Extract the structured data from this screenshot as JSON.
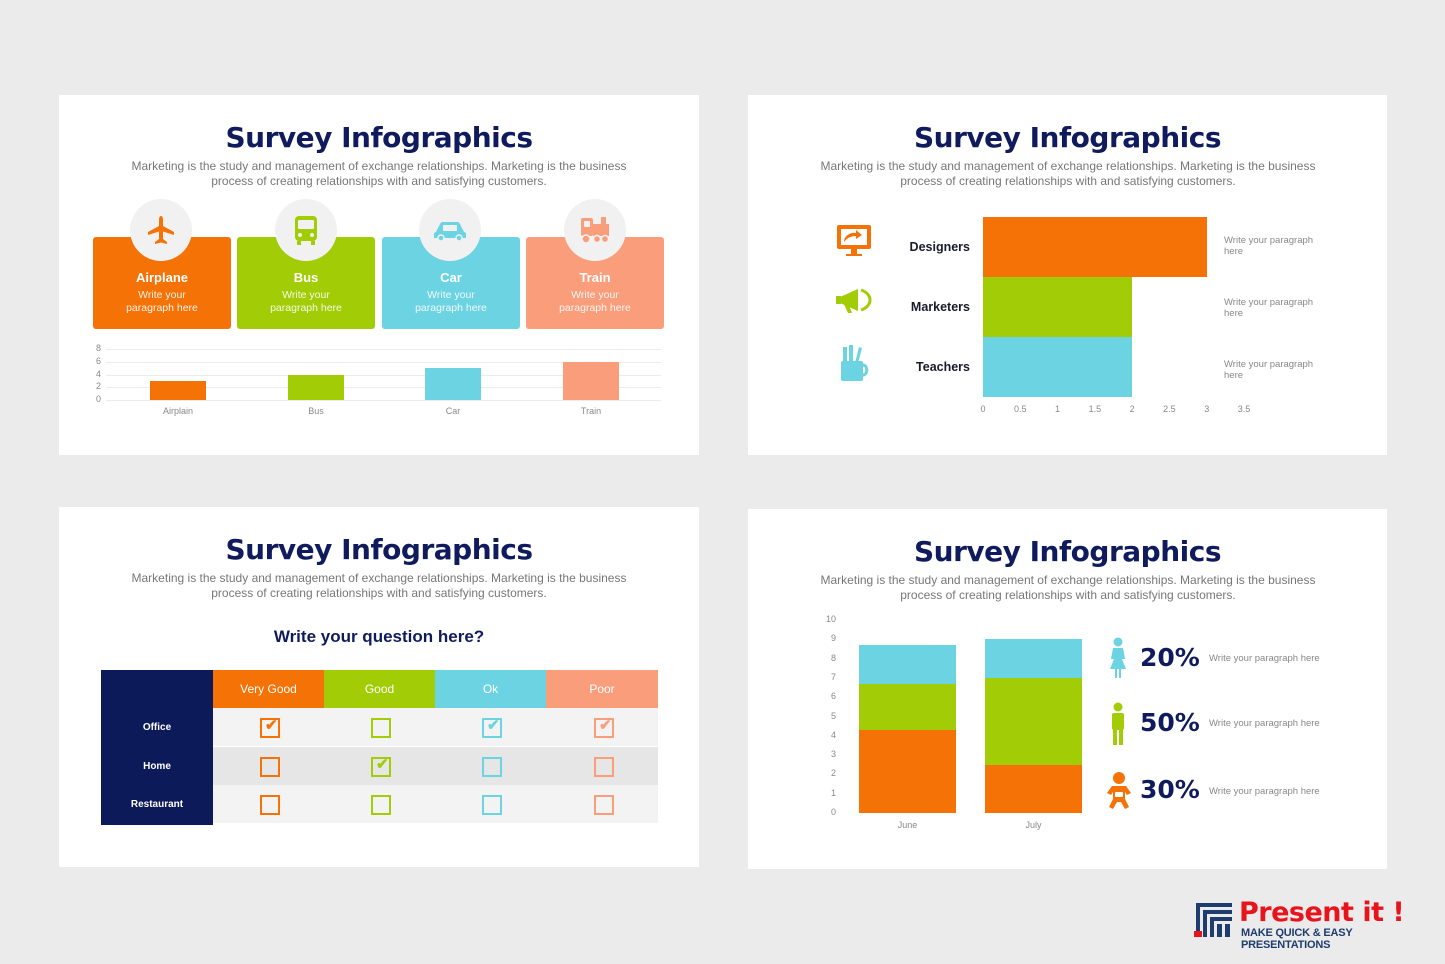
{
  "colors": {
    "orange": "#f57206",
    "green": "#a2cc05",
    "cyan": "#6cd3e2",
    "salmon": "#f99d7b",
    "navy": "#0c1a5a"
  },
  "slide1": {
    "title": "Survey Infographics",
    "subtitle": "Marketing is the study and management of exchange relationships. Marketing is the business process of creating relationships with and satisfying customers.",
    "cards": [
      {
        "name": "Airplane",
        "desc": "Write your paragraph here",
        "icon": "airplane-icon"
      },
      {
        "name": "Bus",
        "desc": "Write your paragraph here",
        "icon": "bus-icon"
      },
      {
        "name": "Car",
        "desc": "Write your paragraph here",
        "icon": "car-icon"
      },
      {
        "name": "Train",
        "desc": "Write your paragraph here",
        "icon": "train-icon"
      }
    ]
  },
  "slide2": {
    "title": "Survey Infographics",
    "subtitle": "Marketing is the study and management of exchange relationships. Marketing is the business process of creating relationships with and satisfying customers.",
    "rows": [
      {
        "label": "Designers",
        "desc": "Write your paragraph here",
        "icon": "monitor-icon"
      },
      {
        "label": "Marketers",
        "desc": "Write your paragraph here",
        "icon": "megaphone-icon"
      },
      {
        "label": "Teachers",
        "desc": "Write your paragraph here",
        "icon": "pencil-cup-icon"
      }
    ]
  },
  "slide3": {
    "title": "Survey Infographics",
    "subtitle": "Marketing is the study and management of exchange relationships. Marketing is the business process of creating relationships with and satisfying customers.",
    "question": "Write your question here?",
    "columns": [
      "Very Good",
      "Good",
      "Ok",
      "Poor"
    ],
    "rows": [
      {
        "label": "Office",
        "checked": [
          true,
          false,
          true,
          true
        ]
      },
      {
        "label": "Home",
        "checked": [
          false,
          true,
          false,
          false
        ]
      },
      {
        "label": "Restaurant",
        "checked": [
          false,
          false,
          false,
          false
        ]
      }
    ]
  },
  "slide4": {
    "title": "Survey Infographics",
    "subtitle": "Marketing is the study and management of exchange relationships. Marketing is the business process of creating relationships with and satisfying customers.",
    "stats": [
      {
        "value": "20%",
        "desc": "Write your paragraph here",
        "icon": "woman-icon"
      },
      {
        "value": "50%",
        "desc": "Write your paragraph here",
        "icon": "man-icon"
      },
      {
        "value": "30%",
        "desc": "Write your paragraph here",
        "icon": "baby-icon"
      }
    ]
  },
  "chart_data": [
    {
      "type": "bar",
      "categories": [
        "Airplain",
        "Bus",
        "Car",
        "Train"
      ],
      "values": [
        3,
        4,
        5,
        6
      ],
      "ylim": [
        0,
        8
      ],
      "yticks": [
        "0",
        "2",
        "4",
        "6",
        "8"
      ],
      "grid": true
    },
    {
      "type": "bar",
      "orientation": "horizontal",
      "categories": [
        "Designers",
        "Marketers",
        "Teachers"
      ],
      "values": [
        3,
        2,
        2
      ],
      "xlim": [
        0,
        3.5
      ],
      "xticks": [
        "0",
        "0.5",
        "1",
        "1.5",
        "2",
        "2.5",
        "3",
        "3.5"
      ]
    },
    {
      "type": "bar",
      "stacked": true,
      "categories": [
        "June",
        "July"
      ],
      "series": [
        {
          "values": [
            4.3,
            2.5
          ]
        },
        {
          "values": [
            2.4,
            4.5
          ]
        },
        {
          "values": [
            2.0,
            2.0
          ]
        }
      ],
      "ylim": [
        0,
        10
      ],
      "yticks": [
        "0",
        "1",
        "2",
        "3",
        "4",
        "5",
        "6",
        "7",
        "8",
        "9",
        "10"
      ]
    }
  ],
  "logo": {
    "name": "Present it !",
    "tagline": "MAKE QUICK & EASY PRESENTATIONS"
  }
}
